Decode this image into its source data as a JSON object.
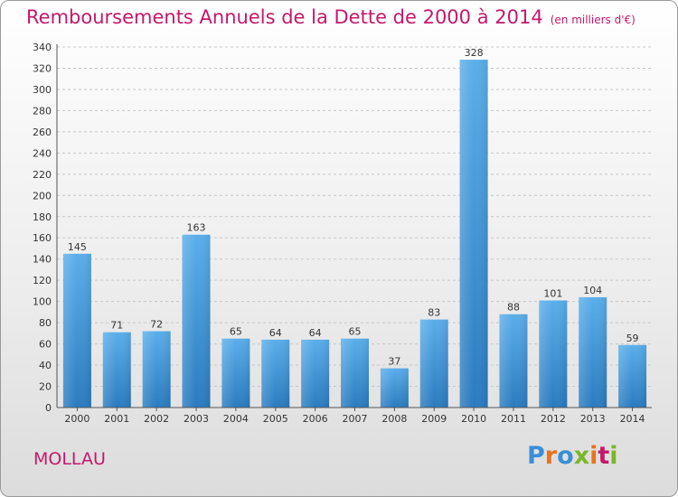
{
  "header": {
    "title": "Remboursements Annuels de la Dette de 2000 à 2014",
    "unit": "(en milliers d'€)"
  },
  "footer": {
    "commune": "MOLLAU",
    "brand_letters": [
      "P",
      "r",
      "o",
      "x",
      "i",
      "t",
      "i"
    ],
    "brand_colors": [
      "#3a8fd6",
      "#e8731b",
      "#3a8fd6",
      "#79b829",
      "#e8731b",
      "#c4196b",
      "#79b829"
    ]
  },
  "colors": {
    "accent": "#c4196b",
    "bar_top": "#5aaeea",
    "bar_bottom": "#2a7bbf"
  },
  "chart_data": {
    "type": "bar",
    "categories": [
      "2000",
      "2001",
      "2002",
      "2003",
      "2004",
      "2005",
      "2006",
      "2007",
      "2008",
      "2009",
      "2010",
      "2011",
      "2012",
      "2013",
      "2014"
    ],
    "values": [
      145,
      71,
      72,
      163,
      65,
      64,
      64,
      65,
      37,
      83,
      328,
      88,
      101,
      104,
      59
    ],
    "ylim": [
      0,
      340
    ],
    "yticks": [
      0,
      20,
      40,
      60,
      80,
      100,
      120,
      140,
      160,
      180,
      200,
      220,
      240,
      260,
      280,
      300,
      320,
      340
    ],
    "grid": true,
    "xlabel": "",
    "ylabel": ""
  }
}
